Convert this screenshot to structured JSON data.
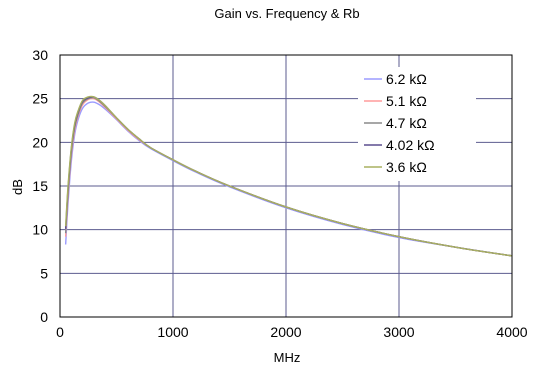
{
  "chart_data": {
    "type": "line",
    "title": "Gain vs. Frequency & Rb",
    "xlabel": "MHz",
    "ylabel": "dB",
    "xlim": [
      0,
      4000
    ],
    "ylim": [
      0,
      30
    ],
    "xticks": [
      0,
      1000,
      2000,
      3000,
      4000
    ],
    "yticks": [
      0,
      5,
      10,
      15,
      20,
      25,
      30
    ],
    "grid": true,
    "legend_position": "top-right",
    "series": [
      {
        "name": "6.2 kΩ",
        "color": "#9b9bff",
        "x": [
          50,
          70,
          100,
          130,
          160,
          200,
          250,
          300,
          350,
          400,
          500,
          600,
          700,
          800,
          1000,
          1200,
          1500,
          2000,
          2500,
          3000,
          3500,
          4000
        ],
        "y": [
          8.3,
          12.8,
          17.8,
          20.9,
          22.6,
          23.9,
          24.5,
          24.6,
          24.3,
          23.8,
          22.6,
          21.3,
          20.2,
          19.3,
          17.9,
          16.6,
          14.9,
          12.5,
          10.6,
          9.1,
          8.0,
          7.0
        ]
      },
      {
        "name": "5.1 kΩ",
        "color": "#ff9b9b",
        "x": [
          50,
          70,
          100,
          130,
          160,
          200,
          250,
          300,
          350,
          400,
          500,
          600,
          700,
          800,
          1000,
          1200,
          1500,
          2000,
          2500,
          3000,
          3500,
          4000
        ],
        "y": [
          9.2,
          13.6,
          18.5,
          21.4,
          23.0,
          24.3,
          24.9,
          25.0,
          24.6,
          24.0,
          22.7,
          21.4,
          20.3,
          19.4,
          18.0,
          16.7,
          15.0,
          12.6,
          10.7,
          9.2,
          8.0,
          7.0
        ]
      },
      {
        "name": "4.7 kΩ",
        "color": "#8a8a8a",
        "x": [
          50,
          70,
          100,
          130,
          160,
          200,
          250,
          300,
          350,
          400,
          500,
          600,
          700,
          800,
          1000,
          1200,
          1500,
          2000,
          2500,
          3000,
          3500,
          4000
        ],
        "y": [
          9.6,
          14.0,
          18.8,
          21.7,
          23.2,
          24.5,
          25.0,
          25.1,
          24.7,
          24.1,
          22.8,
          21.5,
          20.4,
          19.4,
          18.0,
          16.7,
          15.0,
          12.6,
          10.7,
          9.2,
          8.0,
          7.0
        ]
      },
      {
        "name": "4.02 kΩ",
        "color": "#5b4f8f",
        "x": [
          50,
          70,
          100,
          130,
          160,
          200,
          250,
          300,
          350,
          400,
          500,
          600,
          700,
          800,
          1000,
          1200,
          1500,
          2000,
          2500,
          3000,
          3500,
          4000
        ],
        "y": [
          10.1,
          14.5,
          19.2,
          22.0,
          23.5,
          24.7,
          25.1,
          25.2,
          24.8,
          24.2,
          22.8,
          21.5,
          20.4,
          19.4,
          18.0,
          16.7,
          15.0,
          12.6,
          10.7,
          9.2,
          8.0,
          7.0
        ]
      },
      {
        "name": "3.6 kΩ",
        "color": "#a8b060",
        "x": [
          50,
          70,
          100,
          130,
          160,
          200,
          250,
          300,
          350,
          400,
          500,
          600,
          700,
          800,
          1000,
          1200,
          1500,
          2000,
          2500,
          3000,
          3500,
          4000
        ],
        "y": [
          10.4,
          14.8,
          19.4,
          22.2,
          23.6,
          24.8,
          25.2,
          25.2,
          24.8,
          24.2,
          22.8,
          21.5,
          20.4,
          19.4,
          18.0,
          16.7,
          15.0,
          12.6,
          10.7,
          9.2,
          8.0,
          7.0
        ]
      }
    ]
  }
}
